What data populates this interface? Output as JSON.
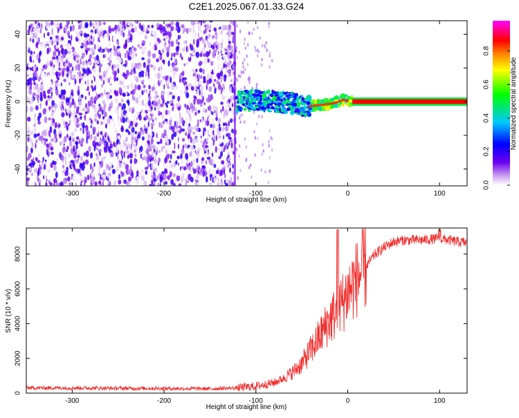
{
  "title": "C2E1.2025.067.01.33.G24",
  "chart_data": [
    {
      "type": "heatmap",
      "xlabel": "Height of straight line (km)",
      "ylabel": "Frequency (Hz)",
      "xlim": [
        -350,
        130
      ],
      "ylim": [
        -50,
        48
      ],
      "xticks": [
        -300,
        -200,
        -100,
        0,
        100
      ],
      "yticks": [
        -40,
        -20,
        0,
        20,
        40
      ],
      "grid": false,
      "colorbar": {
        "label": "Normalized spectral amplitude",
        "range": [
          0,
          1
        ],
        "ticks": [
          "0.0",
          "0.2",
          "0.4",
          "0.6",
          "0.8"
        ],
        "colors": [
          "#ffffff",
          "#c89bf0",
          "#6a00f0",
          "#0000ff",
          "#00c8ff",
          "#00ff00",
          "#ffff00",
          "#ff8000",
          "#ff0000",
          "#ff00ff"
        ]
      },
      "regions": [
        {
          "x": [
            -350,
            -122
          ],
          "freq_hz": [
            -50,
            48
          ],
          "description_level": 0.12
        },
        {
          "x": [
            -122,
            5
          ],
          "freq_hz": [
            -8,
            6
          ],
          "description_level": 0.45
        },
        {
          "x": [
            5,
            130
          ],
          "freq_hz": [
            -0.5,
            0.5
          ],
          "description_level": 0.9
        }
      ],
      "signal_track": [
        {
          "x": -120,
          "freq": 0
        },
        {
          "x": -100,
          "freq": 1
        },
        {
          "x": -80,
          "freq": 0
        },
        {
          "x": -60,
          "freq": -1
        },
        {
          "x": -45,
          "freq": -3
        },
        {
          "x": -30,
          "freq": -2
        },
        {
          "x": -15,
          "freq": -1
        },
        {
          "x": -5,
          "freq": 1
        },
        {
          "x": 5,
          "freq": 0
        },
        {
          "x": 130,
          "freq": 0
        }
      ]
    },
    {
      "type": "line",
      "xlabel": "Height of straight line (km)",
      "ylabel": "SNR (10 * v/v)",
      "xlim": [
        -350,
        130
      ],
      "ylim": [
        0,
        9500
      ],
      "xticks": [
        -300,
        -200,
        -100,
        0,
        100
      ],
      "yticks": [
        0,
        2000,
        4000,
        6000,
        8000
      ],
      "grid": false,
      "series": [
        {
          "color": "#f03030",
          "x": [
            -350,
            -300,
            -250,
            -200,
            -150,
            -120,
            -100,
            -80,
            -70,
            -60,
            -50,
            -40,
            -30,
            -20,
            -10,
            0,
            10,
            20,
            30,
            40,
            50,
            60,
            80,
            100,
            120,
            130
          ],
          "y": [
            300,
            300,
            280,
            270,
            250,
            300,
            400,
            600,
            850,
            1200,
            1700,
            2500,
            3300,
            4200,
            4800,
            5800,
            6600,
            7300,
            8000,
            8400,
            8700,
            8800,
            8800,
            8900,
            8700,
            8650
          ]
        }
      ]
    }
  ]
}
